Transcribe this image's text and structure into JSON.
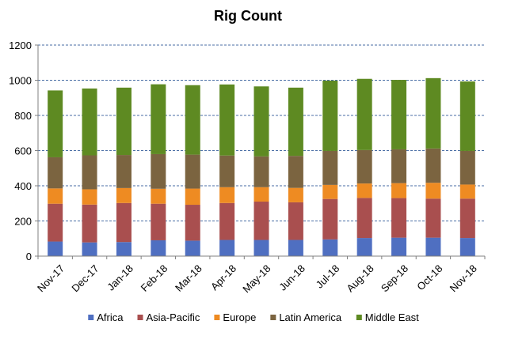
{
  "chart_data": {
    "type": "bar",
    "stacked": true,
    "title": "Rig Count",
    "xlabel": "",
    "ylabel": "",
    "ylim": [
      0,
      1200
    ],
    "yticks": [
      0,
      200,
      400,
      600,
      800,
      1000,
      1200
    ],
    "grid": true,
    "legend_position": "bottom",
    "categories": [
      "Nov-17",
      "Dec-17",
      "Jan-18",
      "Feb-18",
      "Mar-18",
      "Apr-18",
      "May-18",
      "Jun-18",
      "Jul-18",
      "Aug-18",
      "Sep-18",
      "Oct-18",
      "Nov-18"
    ],
    "series": [
      {
        "name": "Africa",
        "color": "#4f6fc1",
        "values": [
          83,
          78,
          80,
          90,
          88,
          92,
          92,
          92,
          95,
          103,
          105,
          105,
          103
        ]
      },
      {
        "name": "Asia-Pacific",
        "color": "#a94f4f",
        "values": [
          215,
          215,
          222,
          208,
          204,
          210,
          218,
          214,
          230,
          228,
          225,
          222,
          224
        ]
      },
      {
        "name": "Europe",
        "color": "#ee8b22",
        "values": [
          87,
          87,
          85,
          85,
          92,
          90,
          82,
          82,
          80,
          82,
          85,
          90,
          80
        ]
      },
      {
        "name": "Latin America",
        "color": "#7b6440",
        "values": [
          177,
          193,
          188,
          197,
          193,
          180,
          175,
          182,
          193,
          190,
          192,
          195,
          191
        ]
      },
      {
        "name": "Middle East",
        "color": "#5e8a22",
        "values": [
          380,
          380,
          383,
          397,
          395,
          404,
          398,
          388,
          400,
          405,
          395,
          400,
          395
        ]
      }
    ]
  }
}
